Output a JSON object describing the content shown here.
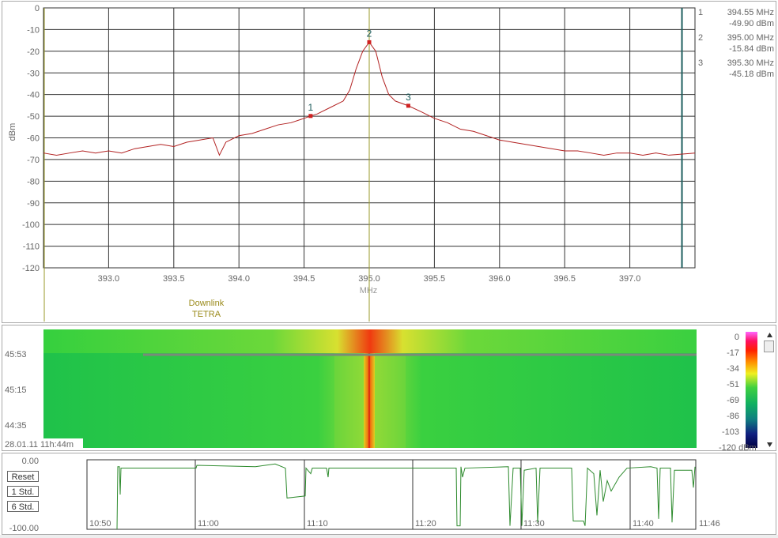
{
  "spectrum": {
    "y_axis_label": "dBm",
    "y_ticks": [
      "0",
      "-10",
      "-20",
      "-30",
      "-40",
      "-50",
      "-60",
      "-70",
      "-80",
      "-90",
      "-100",
      "-110",
      "-120"
    ],
    "x_ticks": [
      "393.0",
      "393.5",
      "394.0",
      "394.5",
      "395.0",
      "395.5",
      "396.0",
      "396.5",
      "397.0"
    ],
    "x_unit": "MHz",
    "band_label_line1": "Downlink",
    "band_label_line2": "TETRA",
    "markers": [
      {
        "id": "1",
        "freq": "394.55 MHz",
        "level": "-49.90 dBm"
      },
      {
        "id": "2",
        "freq": "395.00 MHz",
        "level": "-15.84 dBm"
      },
      {
        "id": "3",
        "freq": "395.30 MHz",
        "level": "-45.18 dBm"
      }
    ],
    "colors": {
      "trace": "#b22222",
      "grid": "#333333",
      "band_line": "#9a9a2a",
      "end_line": "#1f5f5f"
    }
  },
  "chart_data": {
    "type": "line",
    "title": "",
    "xlabel": "MHz",
    "ylabel": "dBm",
    "xlim": [
      392.5,
      397.5
    ],
    "ylim": [
      -120,
      0
    ],
    "series": [
      {
        "x": [
          392.5,
          392.6,
          392.7,
          392.8,
          392.9,
          393.0,
          393.1,
          393.2,
          393.3,
          393.4,
          393.5,
          393.6,
          393.7,
          393.8,
          393.85,
          393.9,
          394.0,
          394.1,
          394.2,
          394.3,
          394.4,
          394.5,
          394.55,
          394.6,
          394.7,
          394.8,
          394.85,
          394.9,
          394.95,
          395.0,
          395.05,
          395.1,
          395.15,
          395.2,
          395.3,
          395.4,
          395.5,
          395.6,
          395.7,
          395.8,
          395.9,
          396.0,
          396.1,
          396.2,
          396.3,
          396.4,
          396.5,
          396.6,
          396.7,
          396.8,
          396.9,
          397.0,
          397.1,
          397.2,
          397.3,
          397.5
        ],
        "y": [
          -67,
          -68,
          -67,
          -66,
          -67,
          -66,
          -67,
          -65,
          -64,
          -63,
          -64,
          -62,
          -61,
          -60,
          -68,
          -62,
          -59,
          -58,
          -56,
          -54,
          -53,
          -51,
          -49.9,
          -49,
          -46,
          -43,
          -38,
          -28,
          -20,
          -15.84,
          -20,
          -32,
          -40,
          -43,
          -45.18,
          -48,
          -51,
          -53,
          -56,
          -57,
          -59,
          -61,
          -62,
          -63,
          -64,
          -65,
          -66,
          -66,
          -67,
          -68,
          -67,
          -67,
          -68,
          -67,
          -68,
          -67
        ]
      }
    ],
    "markers": [
      {
        "label": "1",
        "x": 394.55,
        "y": -49.9
      },
      {
        "label": "2",
        "x": 395.0,
        "y": -15.84
      },
      {
        "label": "3",
        "x": 395.3,
        "y": -45.18
      }
    ],
    "band_line_x": 395.0,
    "end_line_x": 397.4,
    "grid": true
  },
  "waterfall": {
    "time_labels": [
      "45:53",
      "45:15",
      "44:35"
    ],
    "footer_label": "28.01.11 11h:44m",
    "scale_labels": [
      "0",
      "-17",
      "-34",
      "-51",
      "-69",
      "-86",
      "-103",
      "-120 dBm"
    ]
  },
  "history": {
    "y_top": "0.00",
    "y_bottom": "-100.00",
    "buttons": {
      "reset": "Reset",
      "std1": "1 Std.",
      "std6": "6 Std."
    },
    "x_ticks": [
      "10:50",
      "11:00",
      "11:10",
      "11:20",
      "11:30",
      "11:40",
      "11:46"
    ],
    "trace_color": "#2e8b2e"
  }
}
